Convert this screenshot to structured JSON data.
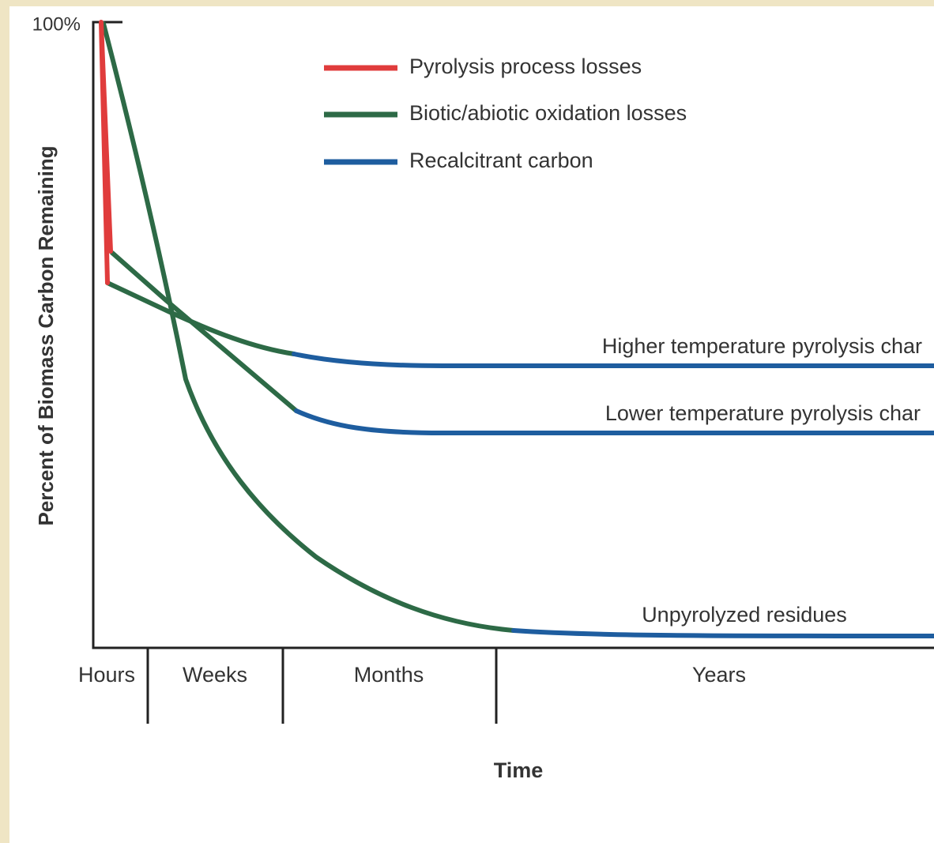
{
  "y_axis": {
    "label": "Percent of Biomass Carbon Remaining",
    "top_label": "100%"
  },
  "x_axis": {
    "label": "Time",
    "periods": [
      "Hours",
      "Weeks",
      "Months",
      "Years"
    ]
  },
  "legend": [
    "Pyrolysis process losses",
    "Biotic/abiotic oxidation losses",
    "Recalcitrant carbon"
  ],
  "curves": [
    "Higher temperature pyrolysis char",
    "Lower temperature pyrolysis char",
    "Unpyrolyzed residues"
  ]
}
